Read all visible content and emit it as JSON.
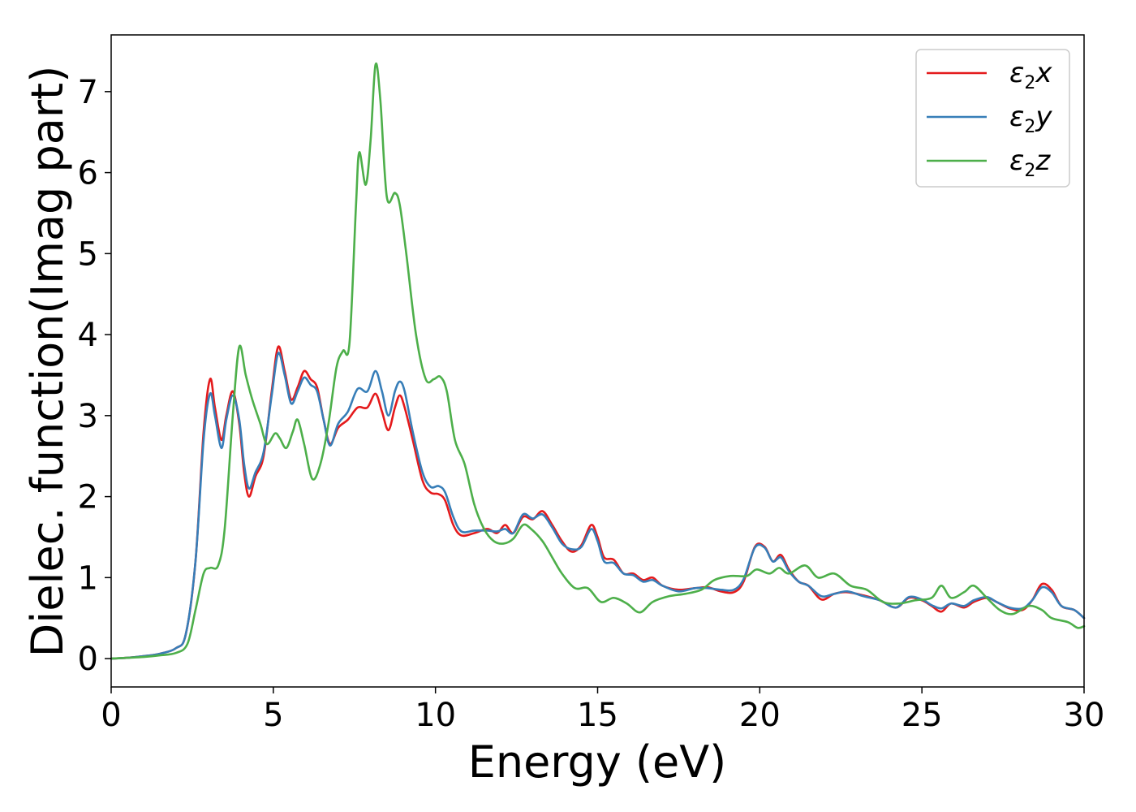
{
  "chart_data": {
    "type": "line",
    "title": "",
    "xlabel": "Energy (eV)",
    "ylabel": "Dielec. function(Imag part)",
    "xlim": [
      0,
      30
    ],
    "ylim": [
      -0.35,
      7.7
    ],
    "xticks": [
      0,
      5,
      10,
      15,
      20,
      25,
      30
    ],
    "yticks": [
      0,
      1,
      2,
      3,
      4,
      5,
      6,
      7
    ],
    "grid": false,
    "legend_position": "top-right",
    "series": [
      {
        "name": "ε₂x",
        "legend_base": "ε",
        "legend_sub": "2",
        "legend_suffix": "x",
        "color": "#e41a1c",
        "points": [
          [
            0,
            0
          ],
          [
            0.5,
            0.01
          ],
          [
            1,
            0.03
          ],
          [
            1.5,
            0.06
          ],
          [
            2,
            0.13
          ],
          [
            2.3,
            0.3
          ],
          [
            2.6,
            1.2
          ],
          [
            2.85,
            2.8
          ],
          [
            3.05,
            3.45
          ],
          [
            3.2,
            3.1
          ],
          [
            3.4,
            2.7
          ],
          [
            3.55,
            3.0
          ],
          [
            3.75,
            3.3
          ],
          [
            3.95,
            2.9
          ],
          [
            4.1,
            2.3
          ],
          [
            4.25,
            2.0
          ],
          [
            4.45,
            2.25
          ],
          [
            4.7,
            2.5
          ],
          [
            4.95,
            3.3
          ],
          [
            5.15,
            3.85
          ],
          [
            5.35,
            3.55
          ],
          [
            5.55,
            3.2
          ],
          [
            5.75,
            3.35
          ],
          [
            5.95,
            3.55
          ],
          [
            6.15,
            3.45
          ],
          [
            6.35,
            3.35
          ],
          [
            6.55,
            2.95
          ],
          [
            6.75,
            2.65
          ],
          [
            7.0,
            2.85
          ],
          [
            7.3,
            2.95
          ],
          [
            7.6,
            3.1
          ],
          [
            7.9,
            3.1
          ],
          [
            8.15,
            3.27
          ],
          [
            8.35,
            3.05
          ],
          [
            8.55,
            2.82
          ],
          [
            8.75,
            3.1
          ],
          [
            8.9,
            3.25
          ],
          [
            9.05,
            3.1
          ],
          [
            9.3,
            2.7
          ],
          [
            9.6,
            2.2
          ],
          [
            9.85,
            2.05
          ],
          [
            10.1,
            2.03
          ],
          [
            10.3,
            1.95
          ],
          [
            10.55,
            1.65
          ],
          [
            10.8,
            1.52
          ],
          [
            11.2,
            1.55
          ],
          [
            11.6,
            1.6
          ],
          [
            11.9,
            1.55
          ],
          [
            12.15,
            1.65
          ],
          [
            12.4,
            1.55
          ],
          [
            12.7,
            1.75
          ],
          [
            13.0,
            1.72
          ],
          [
            13.3,
            1.82
          ],
          [
            13.6,
            1.65
          ],
          [
            13.9,
            1.45
          ],
          [
            14.2,
            1.32
          ],
          [
            14.5,
            1.4
          ],
          [
            14.8,
            1.65
          ],
          [
            15.0,
            1.5
          ],
          [
            15.2,
            1.25
          ],
          [
            15.5,
            1.22
          ],
          [
            15.8,
            1.05
          ],
          [
            16.1,
            1.05
          ],
          [
            16.4,
            0.97
          ],
          [
            16.7,
            1.0
          ],
          [
            17.0,
            0.9
          ],
          [
            17.5,
            0.85
          ],
          [
            18.0,
            0.87
          ],
          [
            18.4,
            0.88
          ],
          [
            18.8,
            0.83
          ],
          [
            19.2,
            0.82
          ],
          [
            19.5,
            0.95
          ],
          [
            19.85,
            1.38
          ],
          [
            20.15,
            1.38
          ],
          [
            20.4,
            1.2
          ],
          [
            20.65,
            1.28
          ],
          [
            20.9,
            1.1
          ],
          [
            21.2,
            0.95
          ],
          [
            21.5,
            0.9
          ],
          [
            21.9,
            0.73
          ],
          [
            22.3,
            0.8
          ],
          [
            22.7,
            0.82
          ],
          [
            23.2,
            0.78
          ],
          [
            23.7,
            0.72
          ],
          [
            24.2,
            0.63
          ],
          [
            24.6,
            0.75
          ],
          [
            25.0,
            0.72
          ],
          [
            25.3,
            0.65
          ],
          [
            25.6,
            0.58
          ],
          [
            25.9,
            0.68
          ],
          [
            26.3,
            0.63
          ],
          [
            26.6,
            0.7
          ],
          [
            27.0,
            0.75
          ],
          [
            27.3,
            0.7
          ],
          [
            27.7,
            0.62
          ],
          [
            28.1,
            0.6
          ],
          [
            28.4,
            0.72
          ],
          [
            28.7,
            0.92
          ],
          [
            29.0,
            0.85
          ],
          [
            29.3,
            0.65
          ],
          [
            29.7,
            0.6
          ],
          [
            30.0,
            0.5
          ]
        ]
      },
      {
        "name": "ε₂y",
        "legend_base": "ε",
        "legend_sub": "2",
        "legend_suffix": "y",
        "color": "#377eb8",
        "points": [
          [
            0,
            0
          ],
          [
            0.5,
            0.01
          ],
          [
            1,
            0.03
          ],
          [
            1.5,
            0.06
          ],
          [
            2,
            0.13
          ],
          [
            2.3,
            0.3
          ],
          [
            2.6,
            1.2
          ],
          [
            2.85,
            2.7
          ],
          [
            3.05,
            3.27
          ],
          [
            3.2,
            3.0
          ],
          [
            3.4,
            2.6
          ],
          [
            3.55,
            2.95
          ],
          [
            3.75,
            3.25
          ],
          [
            3.95,
            2.95
          ],
          [
            4.1,
            2.4
          ],
          [
            4.25,
            2.1
          ],
          [
            4.45,
            2.3
          ],
          [
            4.7,
            2.55
          ],
          [
            4.95,
            3.25
          ],
          [
            5.15,
            3.77
          ],
          [
            5.35,
            3.5
          ],
          [
            5.55,
            3.15
          ],
          [
            5.75,
            3.3
          ],
          [
            5.95,
            3.47
          ],
          [
            6.15,
            3.38
          ],
          [
            6.35,
            3.3
          ],
          [
            6.55,
            2.95
          ],
          [
            6.75,
            2.63
          ],
          [
            7.0,
            2.9
          ],
          [
            7.3,
            3.05
          ],
          [
            7.6,
            3.33
          ],
          [
            7.9,
            3.3
          ],
          [
            8.15,
            3.55
          ],
          [
            8.35,
            3.3
          ],
          [
            8.55,
            3.0
          ],
          [
            8.75,
            3.3
          ],
          [
            8.9,
            3.42
          ],
          [
            9.05,
            3.3
          ],
          [
            9.3,
            2.8
          ],
          [
            9.6,
            2.3
          ],
          [
            9.85,
            2.12
          ],
          [
            10.1,
            2.13
          ],
          [
            10.3,
            2.05
          ],
          [
            10.55,
            1.75
          ],
          [
            10.8,
            1.57
          ],
          [
            11.2,
            1.58
          ],
          [
            11.6,
            1.58
          ],
          [
            11.9,
            1.57
          ],
          [
            12.15,
            1.6
          ],
          [
            12.4,
            1.55
          ],
          [
            12.7,
            1.78
          ],
          [
            13.0,
            1.73
          ],
          [
            13.3,
            1.78
          ],
          [
            13.6,
            1.62
          ],
          [
            13.9,
            1.42
          ],
          [
            14.2,
            1.35
          ],
          [
            14.5,
            1.38
          ],
          [
            14.8,
            1.6
          ],
          [
            15.0,
            1.45
          ],
          [
            15.2,
            1.2
          ],
          [
            15.5,
            1.18
          ],
          [
            15.8,
            1.05
          ],
          [
            16.1,
            1.03
          ],
          [
            16.4,
            0.95
          ],
          [
            16.7,
            0.97
          ],
          [
            17.0,
            0.9
          ],
          [
            17.5,
            0.83
          ],
          [
            18.0,
            0.87
          ],
          [
            18.4,
            0.87
          ],
          [
            18.8,
            0.85
          ],
          [
            19.2,
            0.85
          ],
          [
            19.5,
            0.98
          ],
          [
            19.85,
            1.37
          ],
          [
            20.15,
            1.37
          ],
          [
            20.4,
            1.2
          ],
          [
            20.65,
            1.25
          ],
          [
            20.9,
            1.08
          ],
          [
            21.2,
            0.95
          ],
          [
            21.5,
            0.9
          ],
          [
            21.9,
            0.77
          ],
          [
            22.3,
            0.8
          ],
          [
            22.7,
            0.83
          ],
          [
            23.2,
            0.77
          ],
          [
            23.7,
            0.72
          ],
          [
            24.2,
            0.63
          ],
          [
            24.6,
            0.76
          ],
          [
            25.0,
            0.73
          ],
          [
            25.3,
            0.66
          ],
          [
            25.6,
            0.62
          ],
          [
            25.9,
            0.68
          ],
          [
            26.3,
            0.65
          ],
          [
            26.6,
            0.72
          ],
          [
            27.0,
            0.76
          ],
          [
            27.3,
            0.7
          ],
          [
            27.7,
            0.63
          ],
          [
            28.1,
            0.62
          ],
          [
            28.4,
            0.72
          ],
          [
            28.7,
            0.88
          ],
          [
            29.0,
            0.82
          ],
          [
            29.3,
            0.65
          ],
          [
            29.7,
            0.6
          ],
          [
            30.0,
            0.5
          ]
        ]
      },
      {
        "name": "ε₂z",
        "legend_base": "ε",
        "legend_sub": "2",
        "legend_suffix": "z",
        "color": "#4daf4a",
        "points": [
          [
            0,
            0
          ],
          [
            0.5,
            0.01
          ],
          [
            1,
            0.02
          ],
          [
            1.5,
            0.04
          ],
          [
            2,
            0.07
          ],
          [
            2.35,
            0.18
          ],
          [
            2.6,
            0.6
          ],
          [
            2.85,
            1.05
          ],
          [
            3.05,
            1.12
          ],
          [
            3.3,
            1.15
          ],
          [
            3.5,
            1.6
          ],
          [
            3.75,
            3.0
          ],
          [
            3.95,
            3.85
          ],
          [
            4.15,
            3.5
          ],
          [
            4.35,
            3.2
          ],
          [
            4.6,
            2.9
          ],
          [
            4.8,
            2.65
          ],
          [
            5.05,
            2.78
          ],
          [
            5.2,
            2.72
          ],
          [
            5.4,
            2.6
          ],
          [
            5.6,
            2.8
          ],
          [
            5.75,
            2.95
          ],
          [
            5.95,
            2.65
          ],
          [
            6.2,
            2.22
          ],
          [
            6.45,
            2.4
          ],
          [
            6.7,
            2.9
          ],
          [
            6.95,
            3.6
          ],
          [
            7.15,
            3.8
          ],
          [
            7.35,
            3.9
          ],
          [
            7.55,
            5.6
          ],
          [
            7.65,
            6.25
          ],
          [
            7.85,
            5.85
          ],
          [
            8.0,
            6.4
          ],
          [
            8.15,
            7.33
          ],
          [
            8.3,
            6.9
          ],
          [
            8.5,
            5.7
          ],
          [
            8.75,
            5.75
          ],
          [
            8.9,
            5.6
          ],
          [
            9.1,
            5.0
          ],
          [
            9.4,
            4.0
          ],
          [
            9.7,
            3.45
          ],
          [
            9.95,
            3.45
          ],
          [
            10.15,
            3.48
          ],
          [
            10.35,
            3.3
          ],
          [
            10.6,
            2.7
          ],
          [
            10.9,
            2.4
          ],
          [
            11.2,
            1.9
          ],
          [
            11.5,
            1.6
          ],
          [
            11.8,
            1.45
          ],
          [
            12.1,
            1.42
          ],
          [
            12.4,
            1.48
          ],
          [
            12.7,
            1.65
          ],
          [
            12.95,
            1.6
          ],
          [
            13.3,
            1.45
          ],
          [
            13.6,
            1.25
          ],
          [
            13.9,
            1.05
          ],
          [
            14.3,
            0.87
          ],
          [
            14.7,
            0.87
          ],
          [
            15.1,
            0.7
          ],
          [
            15.5,
            0.75
          ],
          [
            15.9,
            0.68
          ],
          [
            16.3,
            0.57
          ],
          [
            16.7,
            0.7
          ],
          [
            17.2,
            0.77
          ],
          [
            17.7,
            0.8
          ],
          [
            18.2,
            0.85
          ],
          [
            18.6,
            0.97
          ],
          [
            19.1,
            1.02
          ],
          [
            19.6,
            1.02
          ],
          [
            19.9,
            1.1
          ],
          [
            20.3,
            1.05
          ],
          [
            20.6,
            1.12
          ],
          [
            20.9,
            1.05
          ],
          [
            21.4,
            1.15
          ],
          [
            21.8,
            1.0
          ],
          [
            22.3,
            1.05
          ],
          [
            22.8,
            0.9
          ],
          [
            23.3,
            0.85
          ],
          [
            23.8,
            0.7
          ],
          [
            24.3,
            0.68
          ],
          [
            24.8,
            0.72
          ],
          [
            25.3,
            0.75
          ],
          [
            25.6,
            0.9
          ],
          [
            25.9,
            0.75
          ],
          [
            26.3,
            0.82
          ],
          [
            26.6,
            0.9
          ],
          [
            27.0,
            0.75
          ],
          [
            27.4,
            0.6
          ],
          [
            27.8,
            0.55
          ],
          [
            28.3,
            0.65
          ],
          [
            28.7,
            0.6
          ],
          [
            29.0,
            0.5
          ],
          [
            29.5,
            0.45
          ],
          [
            29.8,
            0.38
          ],
          [
            30.0,
            0.4
          ]
        ]
      }
    ]
  }
}
